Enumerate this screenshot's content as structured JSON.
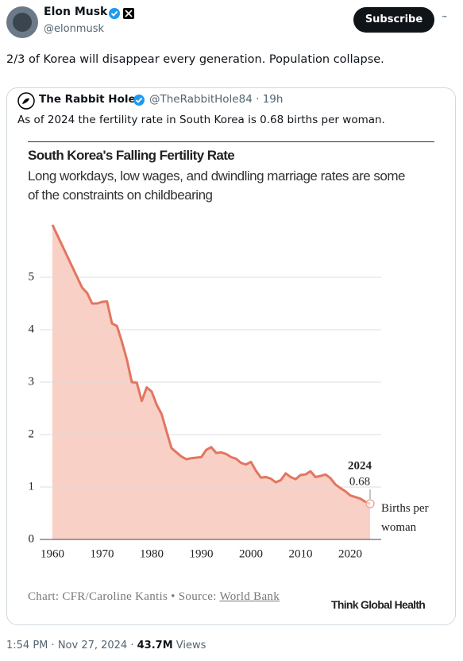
{
  "post": {
    "author": {
      "name": "Elon Musk",
      "handle": "@elonmusk"
    },
    "button": "Subscribe",
    "menu": "···",
    "text": "2/3 of Korea will disappear every generation. Population collapse.",
    "quote": {
      "name": "The Rabbit Hole",
      "handle": "@TheRabbitHole84",
      "separator": "·",
      "time": "19h",
      "text": "As of 2024 the fertility rate in South Korea is 0.68 births per woman."
    },
    "footer": {
      "time": "1:54 PM",
      "separator": "·",
      "date": "Nov 27, 2024",
      "views": "43.7M",
      "views_label": "Views"
    }
  },
  "chart_data": {
    "type": "line",
    "title": "South Korea's Falling Fertility Rate",
    "subtitle": "Long workdays, low wages, and dwindling marriage rates are some of the constraints on childbearing",
    "ylabel": "Births per woman",
    "source": "Chart: CFR/Caroline Kantis • Source: ",
    "source_link": "World Bank",
    "brand": "Think Global Health",
    "color": "#e27660",
    "fill": "#f9d0c5",
    "grid": true,
    "x": [
      1960,
      1961,
      1962,
      1963,
      1964,
      1965,
      1966,
      1967,
      1968,
      1969,
      1970,
      1971,
      1972,
      1973,
      1974,
      1975,
      1976,
      1977,
      1978,
      1979,
      1980,
      1981,
      1982,
      1983,
      1984,
      1985,
      1986,
      1987,
      1988,
      1989,
      1990,
      1991,
      1992,
      1993,
      1994,
      1995,
      1996,
      1997,
      1998,
      1999,
      2000,
      2001,
      2002,
      2003,
      2004,
      2005,
      2006,
      2007,
      2008,
      2009,
      2010,
      2011,
      2012,
      2013,
      2014,
      2015,
      2016,
      2017,
      2018,
      2019,
      2020,
      2021,
      2022,
      2023,
      2024
    ],
    "values": [
      6.0,
      5.8,
      5.6,
      5.4,
      5.2,
      5.0,
      4.8,
      4.7,
      4.5,
      4.5,
      4.53,
      4.54,
      4.12,
      4.07,
      3.77,
      3.43,
      3.0,
      2.99,
      2.64,
      2.9,
      2.82,
      2.57,
      2.39,
      2.06,
      1.74,
      1.66,
      1.58,
      1.53,
      1.55,
      1.56,
      1.57,
      1.71,
      1.76,
      1.65,
      1.66,
      1.63,
      1.57,
      1.54,
      1.46,
      1.43,
      1.48,
      1.31,
      1.18,
      1.19,
      1.16,
      1.09,
      1.13,
      1.26,
      1.19,
      1.15,
      1.23,
      1.24,
      1.3,
      1.19,
      1.21,
      1.24,
      1.17,
      1.05,
      0.98,
      0.92,
      0.84,
      0.81,
      0.78,
      0.72,
      0.68
    ],
    "xlim": [
      1960,
      2024
    ],
    "xticks": [
      1960,
      1970,
      1980,
      1990,
      2000,
      2010,
      2020
    ],
    "ylim": [
      0,
      6
    ],
    "yticks": [
      0,
      1,
      2,
      3,
      4,
      5
    ]
  }
}
